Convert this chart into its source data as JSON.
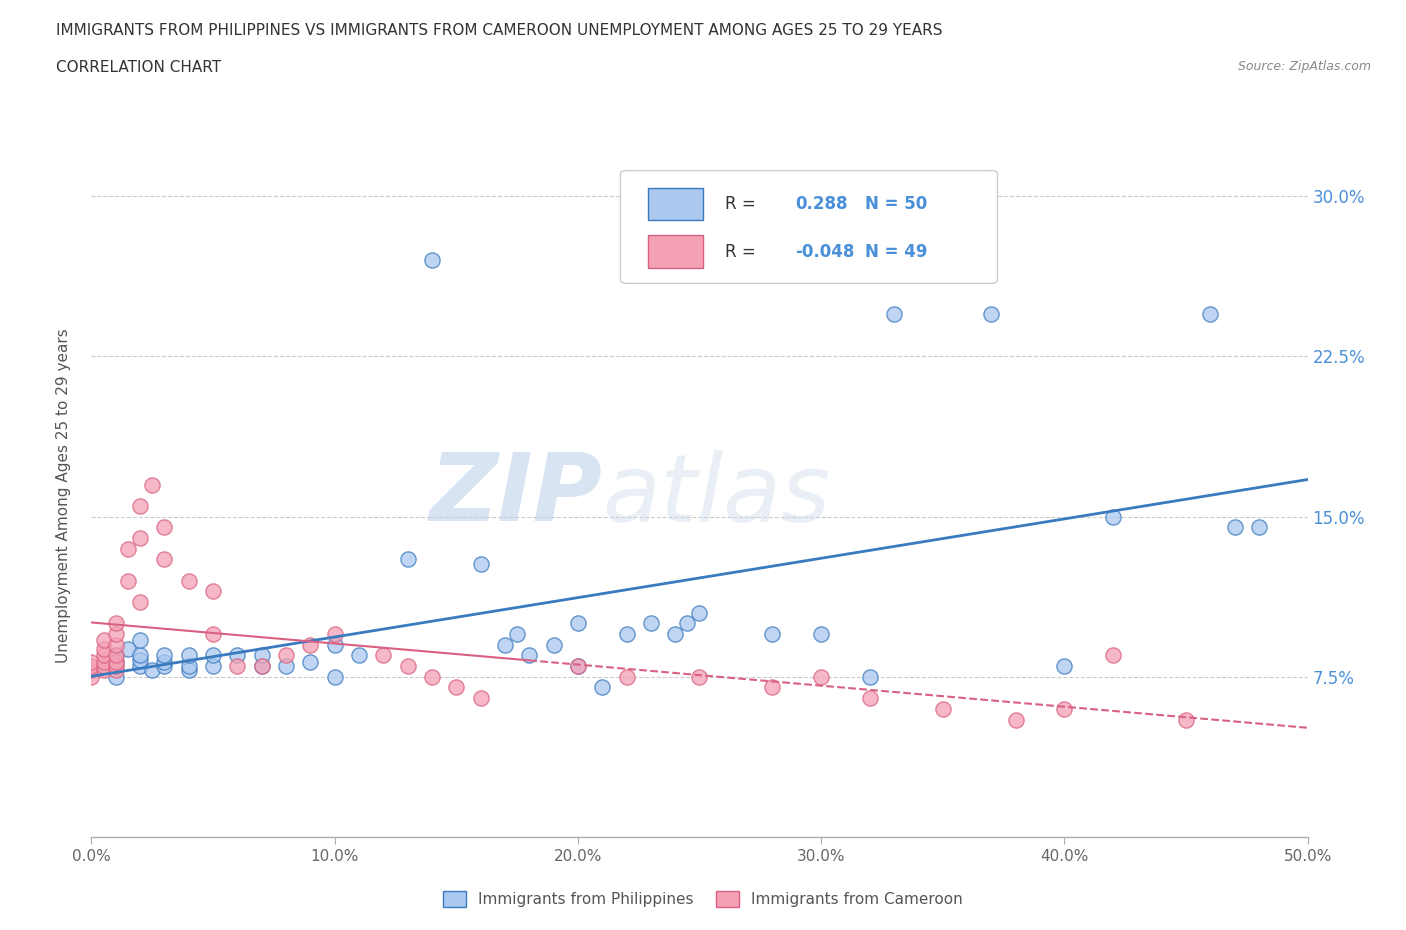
{
  "title_line1": "IMMIGRANTS FROM PHILIPPINES VS IMMIGRANTS FROM CAMEROON UNEMPLOYMENT AMONG AGES 25 TO 29 YEARS",
  "title_line2": "CORRELATION CHART",
  "source_text": "Source: ZipAtlas.com",
  "ylabel": "Unemployment Among Ages 25 to 29 years",
  "xlim": [
    0.0,
    0.5
  ],
  "ylim": [
    0.0,
    0.32
  ],
  "ytick_labels": [
    "7.5%",
    "15.0%",
    "22.5%",
    "30.0%"
  ],
  "ytick_vals": [
    0.075,
    0.15,
    0.225,
    0.3
  ],
  "xtick_labels": [
    "0.0%",
    "10.0%",
    "20.0%",
    "30.0%",
    "40.0%",
    "50.0%"
  ],
  "xtick_vals": [
    0.0,
    0.1,
    0.2,
    0.3,
    0.4,
    0.5
  ],
  "philippines_color": "#aac8f0",
  "cameroon_color": "#f4a0b5",
  "philippines_line_color": "#3a7abf",
  "cameroon_line_color": "#d96080",
  "r_philippines": 0.288,
  "n_philippines": 50,
  "r_cameroon": -0.048,
  "n_cameroon": 49,
  "watermark_zip": "ZIP",
  "watermark_atlas": "atlas",
  "legend1_label": "Immigrants from Philippines",
  "legend2_label": "Immigrants from Cameroon",
  "philippines_x": [
    0.01,
    0.01,
    0.01,
    0.015,
    0.02,
    0.02,
    0.02,
    0.02,
    0.025,
    0.03,
    0.03,
    0.03,
    0.04,
    0.04,
    0.04,
    0.05,
    0.05,
    0.06,
    0.07,
    0.07,
    0.08,
    0.09,
    0.1,
    0.1,
    0.11,
    0.13,
    0.14,
    0.16,
    0.17,
    0.175,
    0.18,
    0.19,
    0.2,
    0.2,
    0.21,
    0.22,
    0.23,
    0.24,
    0.245,
    0.25,
    0.28,
    0.3,
    0.32,
    0.33,
    0.37,
    0.4,
    0.42,
    0.46,
    0.47,
    0.48
  ],
  "philippines_y": [
    0.075,
    0.082,
    0.085,
    0.088,
    0.08,
    0.083,
    0.085,
    0.092,
    0.078,
    0.08,
    0.082,
    0.085,
    0.078,
    0.08,
    0.085,
    0.08,
    0.085,
    0.085,
    0.08,
    0.085,
    0.08,
    0.082,
    0.075,
    0.09,
    0.085,
    0.13,
    0.27,
    0.128,
    0.09,
    0.095,
    0.085,
    0.09,
    0.08,
    0.1,
    0.07,
    0.095,
    0.1,
    0.095,
    0.1,
    0.105,
    0.095,
    0.095,
    0.075,
    0.245,
    0.245,
    0.08,
    0.15,
    0.245,
    0.145,
    0.145
  ],
  "cameroon_x": [
    0.0,
    0.0,
    0.0,
    0.0,
    0.005,
    0.005,
    0.005,
    0.005,
    0.005,
    0.005,
    0.01,
    0.01,
    0.01,
    0.01,
    0.01,
    0.01,
    0.01,
    0.015,
    0.015,
    0.02,
    0.02,
    0.02,
    0.025,
    0.03,
    0.03,
    0.04,
    0.05,
    0.05,
    0.06,
    0.07,
    0.08,
    0.09,
    0.1,
    0.12,
    0.13,
    0.14,
    0.15,
    0.16,
    0.2,
    0.22,
    0.25,
    0.28,
    0.3,
    0.32,
    0.35,
    0.38,
    0.4,
    0.42,
    0.45
  ],
  "cameroon_y": [
    0.075,
    0.078,
    0.08,
    0.082,
    0.078,
    0.08,
    0.082,
    0.085,
    0.088,
    0.092,
    0.078,
    0.08,
    0.082,
    0.085,
    0.09,
    0.095,
    0.1,
    0.12,
    0.135,
    0.11,
    0.14,
    0.155,
    0.165,
    0.13,
    0.145,
    0.12,
    0.095,
    0.115,
    0.08,
    0.08,
    0.085,
    0.09,
    0.095,
    0.085,
    0.08,
    0.075,
    0.07,
    0.065,
    0.08,
    0.075,
    0.075,
    0.07,
    0.075,
    0.065,
    0.06,
    0.055,
    0.06,
    0.085,
    0.055
  ]
}
